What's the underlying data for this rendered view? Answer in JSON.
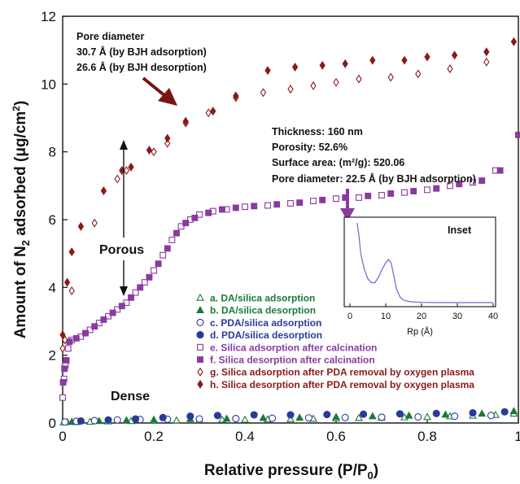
{
  "chart_data": {
    "type": "scatter",
    "xlabel": "Relative pressure (P/P",
    "xlabel_sub": "0",
    "xlabel_close": ")",
    "ylabel_pre": "Amount of N",
    "ylabel_sub": "2",
    "ylabel_post": " adsorbed (μg/cm",
    "ylabel_sup": "2",
    "ylabel_close": ")",
    "xlim": [
      0,
      1
    ],
    "ylim": [
      0,
      12
    ],
    "x_ticks": [
      "0",
      "0.2",
      "0.4",
      "0.6",
      "0.8",
      "1"
    ],
    "y_ticks": [
      "0",
      "2",
      "4",
      "6",
      "8",
      "10",
      "12"
    ],
    "series": [
      {
        "name": "a. DA/silica adsorption",
        "marker": "triangle-open",
        "color": "#1a7a3a",
        "points": [
          [
            0.002,
            0.02
          ],
          [
            0.01,
            0.03
          ],
          [
            0.03,
            0.03
          ],
          [
            0.06,
            0.04
          ],
          [
            0.1,
            0.05
          ],
          [
            0.15,
            0.06
          ],
          [
            0.2,
            0.07
          ],
          [
            0.25,
            0.08
          ],
          [
            0.3,
            0.09
          ],
          [
            0.35,
            0.1
          ],
          [
            0.4,
            0.1
          ],
          [
            0.45,
            0.11
          ],
          [
            0.5,
            0.12
          ],
          [
            0.55,
            0.13
          ],
          [
            0.6,
            0.14
          ],
          [
            0.65,
            0.15
          ],
          [
            0.7,
            0.16
          ],
          [
            0.75,
            0.17
          ],
          [
            0.8,
            0.18
          ],
          [
            0.85,
            0.2
          ],
          [
            0.9,
            0.22
          ],
          [
            0.95,
            0.24
          ],
          [
            0.99,
            0.28
          ]
        ]
      },
      {
        "name": "b. DA/silica desorption",
        "marker": "triangle-filled",
        "color": "#1a7a3a",
        "points": [
          [
            0.02,
            0.04
          ],
          [
            0.08,
            0.06
          ],
          [
            0.14,
            0.08
          ],
          [
            0.2,
            0.1
          ],
          [
            0.28,
            0.12
          ],
          [
            0.36,
            0.13
          ],
          [
            0.44,
            0.15
          ],
          [
            0.52,
            0.16
          ],
          [
            0.6,
            0.18
          ],
          [
            0.68,
            0.2
          ],
          [
            0.76,
            0.22
          ],
          [
            0.84,
            0.25
          ],
          [
            0.92,
            0.28
          ],
          [
            0.99,
            0.35
          ]
        ]
      },
      {
        "name": "c. PDA/silica adsorption",
        "marker": "circle-open",
        "color": "#2a3a9a",
        "points": [
          [
            0.005,
            0.03
          ],
          [
            0.03,
            0.05
          ],
          [
            0.07,
            0.07
          ],
          [
            0.12,
            0.09
          ],
          [
            0.17,
            0.1
          ],
          [
            0.23,
            0.11
          ],
          [
            0.3,
            0.12
          ],
          [
            0.38,
            0.13
          ],
          [
            0.46,
            0.14
          ],
          [
            0.54,
            0.15
          ],
          [
            0.62,
            0.16
          ],
          [
            0.7,
            0.17
          ],
          [
            0.78,
            0.18
          ],
          [
            0.86,
            0.2
          ],
          [
            0.94,
            0.22
          ]
        ]
      },
      {
        "name": "d. PDA/silica desorption",
        "marker": "circle-filled",
        "color": "#2a3a9a",
        "points": [
          [
            0.04,
            0.06
          ],
          [
            0.1,
            0.09
          ],
          [
            0.16,
            0.12
          ],
          [
            0.22,
            0.16
          ],
          [
            0.28,
            0.2
          ],
          [
            0.34,
            0.22
          ],
          [
            0.42,
            0.24
          ],
          [
            0.5,
            0.24
          ],
          [
            0.58,
            0.25
          ],
          [
            0.66,
            0.26
          ],
          [
            0.74,
            0.27
          ],
          [
            0.82,
            0.28
          ],
          [
            0.9,
            0.3
          ],
          [
            0.97,
            0.33
          ]
        ]
      },
      {
        "name": "e. Silica adsorption after calcination",
        "marker": "square-open",
        "color": "#8a3aa0",
        "points": [
          [
            0.0,
            0.75
          ],
          [
            0.003,
            1.3
          ],
          [
            0.006,
            1.7
          ],
          [
            0.012,
            2.2
          ],
          [
            0.02,
            2.45
          ],
          [
            0.04,
            2.55
          ],
          [
            0.06,
            2.75
          ],
          [
            0.08,
            2.95
          ],
          [
            0.1,
            3.15
          ],
          [
            0.12,
            3.35
          ],
          [
            0.14,
            3.55
          ],
          [
            0.16,
            3.85
          ],
          [
            0.18,
            4.15
          ],
          [
            0.2,
            4.5
          ],
          [
            0.22,
            4.95
          ],
          [
            0.24,
            5.4
          ],
          [
            0.26,
            5.8
          ],
          [
            0.28,
            6.0
          ],
          [
            0.3,
            6.15
          ],
          [
            0.33,
            6.25
          ],
          [
            0.36,
            6.3
          ],
          [
            0.4,
            6.38
          ],
          [
            0.45,
            6.42
          ],
          [
            0.5,
            6.48
          ],
          [
            0.55,
            6.55
          ],
          [
            0.6,
            6.62
          ],
          [
            0.65,
            6.65
          ],
          [
            0.7,
            6.72
          ],
          [
            0.75,
            6.8
          ],
          [
            0.8,
            6.88
          ],
          [
            0.85,
            7.0
          ],
          [
            0.9,
            7.1
          ],
          [
            0.95,
            7.45
          ]
        ]
      },
      {
        "name": "f. Silica desorption after calcination",
        "marker": "square-filled",
        "color": "#8a3aa0",
        "points": [
          [
            0.001,
            1.2
          ],
          [
            0.004,
            1.6
          ],
          [
            0.008,
            1.85
          ],
          [
            0.015,
            2.4
          ],
          [
            0.03,
            2.5
          ],
          [
            0.05,
            2.65
          ],
          [
            0.07,
            2.85
          ],
          [
            0.09,
            3.05
          ],
          [
            0.11,
            3.25
          ],
          [
            0.13,
            3.45
          ],
          [
            0.15,
            3.7
          ],
          [
            0.17,
            4.0
          ],
          [
            0.19,
            4.3
          ],
          [
            0.21,
            4.7
          ],
          [
            0.23,
            5.15
          ],
          [
            0.25,
            5.6
          ],
          [
            0.27,
            5.9
          ],
          [
            0.29,
            6.05
          ],
          [
            0.32,
            6.2
          ],
          [
            0.35,
            6.3
          ],
          [
            0.38,
            6.35
          ],
          [
            0.42,
            6.4
          ],
          [
            0.47,
            6.45
          ],
          [
            0.52,
            6.5
          ],
          [
            0.57,
            6.58
          ],
          [
            0.62,
            6.65
          ],
          [
            0.67,
            6.7
          ],
          [
            0.72,
            6.77
          ],
          [
            0.77,
            6.84
          ],
          [
            0.82,
            6.92
          ],
          [
            0.87,
            7.05
          ],
          [
            0.92,
            7.15
          ],
          [
            0.96,
            7.45
          ],
          [
            1.0,
            8.5
          ]
        ]
      },
      {
        "name": "g. Silica adsorption after PDA removal by oxygen plasma",
        "marker": "diamond-open",
        "color": "#8a1a1a",
        "points": [
          [
            0.0,
            2.2
          ],
          [
            0.005,
            2.45
          ],
          [
            0.02,
            3.9
          ],
          [
            0.07,
            5.9
          ],
          [
            0.12,
            7.2
          ],
          [
            0.14,
            7.45
          ],
          [
            0.2,
            8.0
          ],
          [
            0.23,
            8.25
          ],
          [
            0.27,
            8.85
          ],
          [
            0.32,
            9.15
          ],
          [
            0.38,
            9.6
          ],
          [
            0.44,
            9.75
          ],
          [
            0.5,
            9.85
          ],
          [
            0.55,
            9.95
          ],
          [
            0.6,
            10.05
          ],
          [
            0.65,
            10.15
          ],
          [
            0.72,
            10.2
          ],
          [
            0.78,
            10.3
          ],
          [
            0.85,
            10.45
          ],
          [
            0.93,
            10.65
          ]
        ]
      },
      {
        "name": "h. Silica desorption after PDA removal by oxygen plasma",
        "marker": "diamond-filled",
        "color": "#8a1a1a",
        "points": [
          [
            0.0,
            2.6
          ],
          [
            0.01,
            4.15
          ],
          [
            0.02,
            5.05
          ],
          [
            0.04,
            5.8
          ],
          [
            0.09,
            6.85
          ],
          [
            0.13,
            7.45
          ],
          [
            0.15,
            7.55
          ],
          [
            0.19,
            8.05
          ],
          [
            0.23,
            8.4
          ],
          [
            0.27,
            8.9
          ],
          [
            0.33,
            9.2
          ],
          [
            0.38,
            9.65
          ],
          [
            0.45,
            10.4
          ],
          [
            0.51,
            10.5
          ],
          [
            0.57,
            10.55
          ],
          [
            0.62,
            10.6
          ],
          [
            0.68,
            10.7
          ],
          [
            0.75,
            10.7
          ],
          [
            0.8,
            10.8
          ],
          [
            0.86,
            10.85
          ],
          [
            0.93,
            10.95
          ],
          [
            0.99,
            11.25
          ]
        ]
      }
    ],
    "annotations": {
      "pore_block": [
        "Pore diameter",
        "30.7 Å (by BJH adsorption)",
        "26.6 Å (by BJH desorption)"
      ],
      "calc_block": [
        "Thickness: 160 nm",
        "Porosity: 52.6%",
        "Surface area: (m²/g): 520.06",
        "Pore diameter: 22.5 Å (by BJH adsorption)"
      ],
      "porous": "Porous",
      "dense": "Dense"
    },
    "inset": {
      "title": "Inset",
      "xlabel": "Rp (Å)",
      "x_ticks": [
        "0",
        "10",
        "20",
        "30",
        "40"
      ],
      "xlim": [
        0,
        40
      ],
      "ylim": [
        0,
        1
      ],
      "color": "#6a6ac8",
      "curve": [
        [
          2,
          1.0
        ],
        [
          2.5,
          0.85
        ],
        [
          3,
          0.62
        ],
        [
          4,
          0.42
        ],
        [
          5,
          0.3
        ],
        [
          6,
          0.25
        ],
        [
          7,
          0.25
        ],
        [
          8,
          0.32
        ],
        [
          9,
          0.42
        ],
        [
          10,
          0.5
        ],
        [
          10.8,
          0.54
        ],
        [
          11.5,
          0.5
        ],
        [
          12.2,
          0.35
        ],
        [
          13,
          0.17
        ],
        [
          14,
          0.07
        ],
        [
          15,
          0.03
        ],
        [
          17,
          0.01
        ],
        [
          20,
          0.003
        ],
        [
          25,
          0.0
        ],
        [
          30,
          0.0
        ],
        [
          40,
          0.0
        ]
      ]
    }
  }
}
